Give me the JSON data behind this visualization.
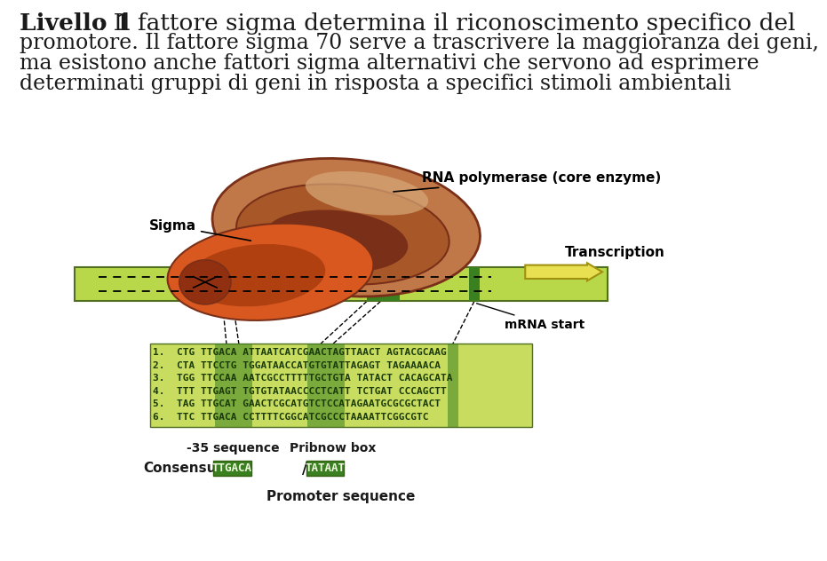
{
  "bg_color": "#ffffff",
  "text_color": "#1a1a1a",
  "title_bold": "Livello 1",
  "title_rest": " : Il fattore sigma determina il riconoscimento specifico del",
  "line2": "promotore. Il fattore sigma 70 serve a trascrivere la maggioranza dei geni,",
  "line3": "ma esistono anche fattori sigma alternativi che servono ad esprimere",
  "line4": "determinati gruppi di geni in risposta a specifici stimoli ambientali",
  "title_fontsize": 19,
  "body_fontsize": 17,
  "light_green": "#b8d84a",
  "med_green": "#8aba30",
  "dark_green": "#3a8020",
  "seq_green": "#c8dc60",
  "dna_sequences": [
    "1.  CTG TTGACA ATTAATCATCGAACTAGTTAACT AGTACGCAAG",
    "2.  CTA TTCCTG TGGATAACCATGTGTATTAGAGT TAGAAAACA",
    "3.  TGG TTCCAA AATCGCCTTTTTGCTGTA TATACT CACAGCATA",
    "4.  TTT TTGAGT TGTGTATAACCCCTCATT TCTGAT CCCAGCTT",
    "5.  TAG TTGCAT GAACTCGCATGTCTCCATAGAATGCGCGCTACT",
    "6.  TTC TTGACA CCTTTTCGGCATCGCCCTAAAATTCGGCGTC"
  ],
  "label_rna_poly": "RNA polymerase (core enzyme)",
  "label_sigma": "Sigma",
  "label_transcription": "Transcription",
  "label_mrna_start": "mRNA start",
  "label_minus35": "-35 sequence",
  "label_pribnow": "Pribnow box",
  "label_consensus": "Consensus",
  "label_ttgaca": "TTGACA",
  "label_tataat": "TATAAT",
  "label_promoter": "Promoter sequence",
  "poly_outer_color": "#c07848",
  "poly_inner_color": "#a85828",
  "poly_dark_color": "#7a3018",
  "poly_highlight": "#d8a878",
  "sigma_color": "#d85820",
  "sigma_dark": "#b04010",
  "sigma_darker": "#903010",
  "yellow_arrow": "#e8e050",
  "yellow_arrow_edge": "#a09010"
}
